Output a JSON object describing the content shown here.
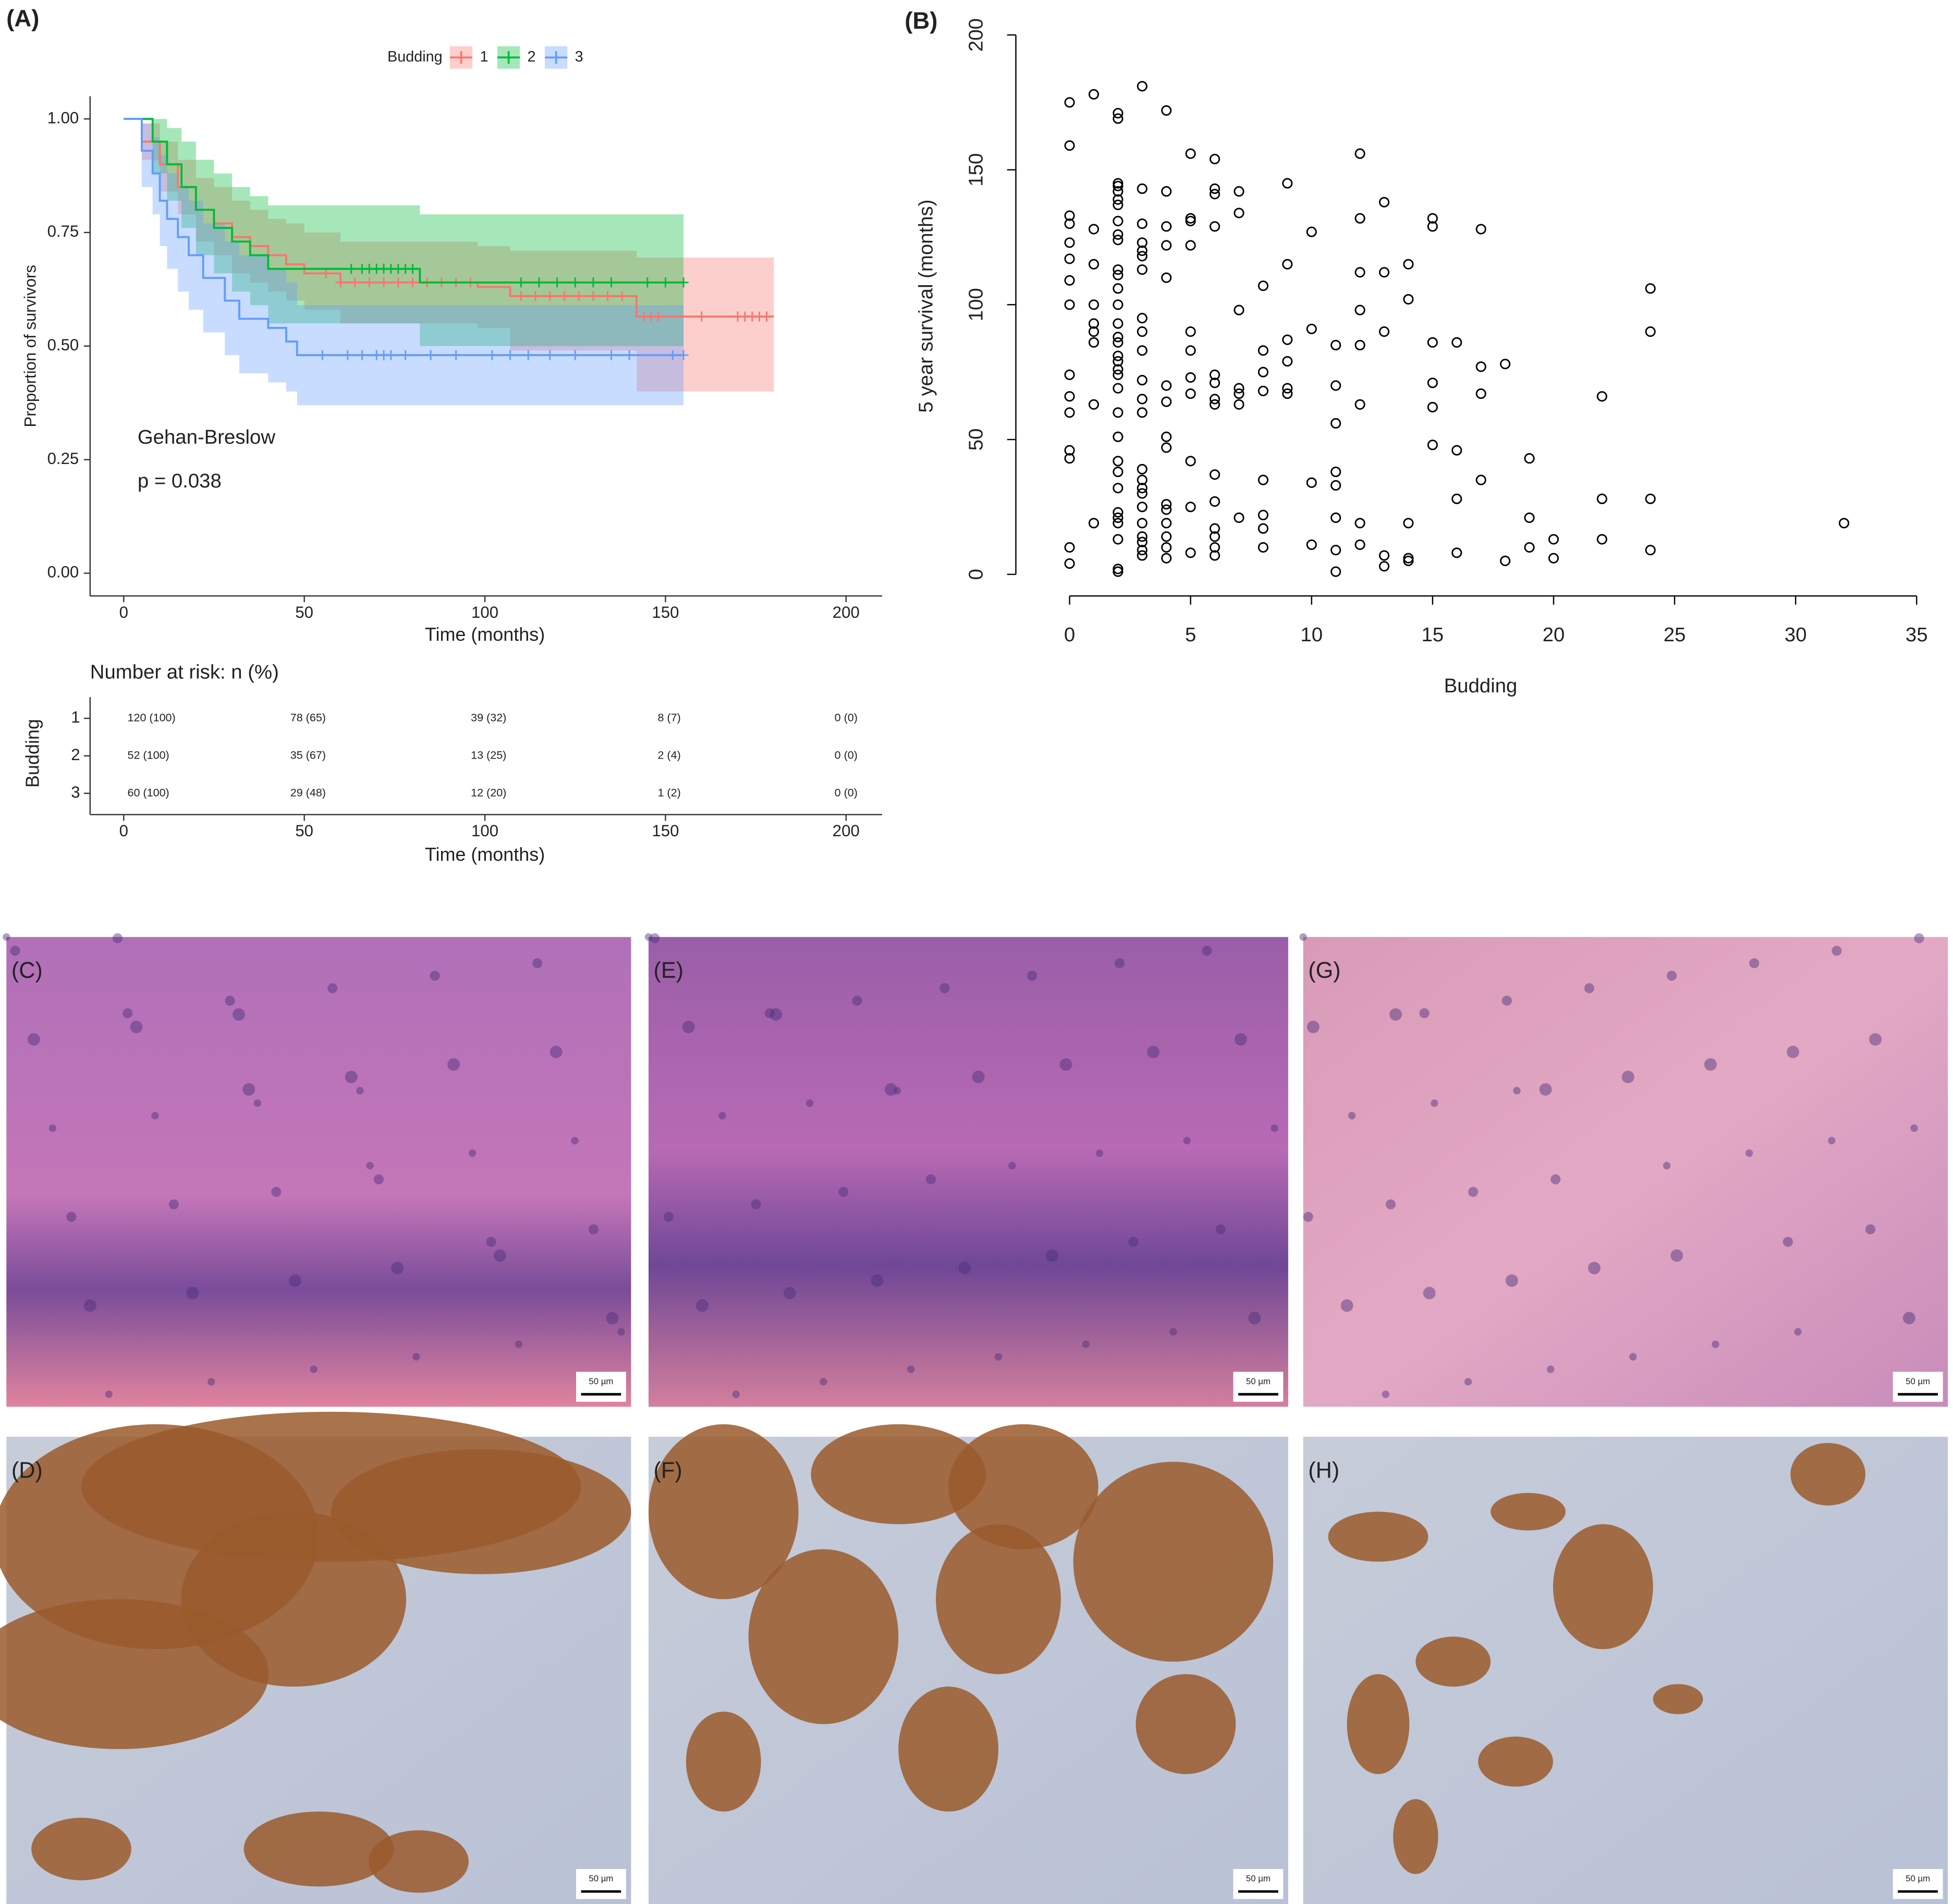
{
  "chart_data": [
    {
      "type": "km",
      "panel": "(A)",
      "xlabel": "Time (months)",
      "ylabel": "Proportion of survivors",
      "legend_title": "Budding",
      "legend": "top",
      "xlim": [
        -10,
        210
      ],
      "xticks": [
        0,
        50,
        100,
        150,
        200
      ],
      "ylim": [
        -0.05,
        1.05
      ],
      "yticks": [
        {
          "value": 0,
          "label": "0.00"
        },
        {
          "value": 0.25,
          "label": "0.25"
        },
        {
          "value": 0.5,
          "label": "0.50"
        },
        {
          "value": 0.75,
          "label": "0.75"
        },
        {
          "value": 1,
          "label": "1.00"
        }
      ],
      "annotations": [
        "Gehan-Breslow",
        "p = 0.038"
      ],
      "series": [
        {
          "name": "1",
          "color": "#F8766D",
          "x": [
            0,
            5,
            10,
            15,
            20,
            25,
            30,
            35,
            40,
            45,
            50,
            60,
            98,
            107,
            142,
            180
          ],
          "values": [
            1,
            0.95,
            0.9,
            0.85,
            0.8,
            0.77,
            0.74,
            0.72,
            0.7,
            0.68,
            0.66,
            0.64,
            0.63,
            0.61,
            0.565,
            0.565
          ],
          "upper": [
            1,
            0.99,
            0.95,
            0.91,
            0.87,
            0.85,
            0.82,
            0.8,
            0.78,
            0.77,
            0.75,
            0.73,
            0.72,
            0.71,
            0.695,
            0.695
          ],
          "lower": [
            1,
            0.91,
            0.84,
            0.79,
            0.73,
            0.7,
            0.66,
            0.64,
            0.62,
            0.6,
            0.58,
            0.55,
            0.54,
            0.49,
            0.4,
            0.4
          ],
          "censored": [
            56,
            60,
            64,
            68,
            72,
            76,
            80,
            84,
            88,
            92,
            96,
            110,
            114,
            118,
            122,
            126,
            130,
            134,
            138,
            144,
            146,
            148,
            160,
            170,
            172,
            174,
            176,
            178
          ]
        },
        {
          "name": "2",
          "color": "#00BA38",
          "x": [
            0,
            8,
            12,
            16,
            20,
            25,
            30,
            35,
            40,
            82,
            155
          ],
          "values": [
            1,
            0.95,
            0.9,
            0.85,
            0.8,
            0.76,
            0.73,
            0.7,
            0.67,
            0.64,
            0.64
          ],
          "upper": [
            1,
            1,
            0.98,
            0.95,
            0.91,
            0.88,
            0.85,
            0.83,
            0.81,
            0.79,
            0.79
          ],
          "lower": [
            1,
            0.88,
            0.82,
            0.76,
            0.7,
            0.66,
            0.62,
            0.59,
            0.55,
            0.5,
            0.5
          ],
          "censored": [
            63,
            66,
            68,
            70,
            72,
            74,
            76,
            78,
            80,
            110,
            115,
            120,
            125,
            130,
            135,
            145,
            150,
            155
          ]
        },
        {
          "name": "3",
          "color": "#619CFF",
          "x": [
            0,
            5,
            8,
            10,
            12,
            15,
            18,
            22,
            28,
            32,
            40,
            45,
            48,
            155
          ],
          "values": [
            1,
            0.93,
            0.88,
            0.82,
            0.78,
            0.74,
            0.7,
            0.65,
            0.6,
            0.56,
            0.54,
            0.51,
            0.48,
            0.48
          ],
          "upper": [
            1,
            0.99,
            0.96,
            0.92,
            0.88,
            0.85,
            0.82,
            0.77,
            0.73,
            0.7,
            0.67,
            0.64,
            0.59,
            0.59
          ],
          "lower": [
            1,
            0.85,
            0.79,
            0.72,
            0.67,
            0.62,
            0.58,
            0.53,
            0.48,
            0.44,
            0.42,
            0.4,
            0.37,
            0.37
          ],
          "censored": [
            55,
            62,
            66,
            70,
            72,
            74,
            78,
            85,
            92,
            102,
            107,
            112,
            118,
            125,
            135,
            140,
            152,
            155
          ]
        }
      ],
      "risk_table": {
        "title": "Number at risk: n (%)",
        "ylabel": "Budding",
        "rows": [
          [
            "120 (100)",
            "78 (65)",
            "39 (32)",
            "8 (7)",
            "0 (0)"
          ],
          [
            "52 (100)",
            "35 (67)",
            "13 (25)",
            "2 (4)",
            "0 (0)"
          ],
          [
            "60 (100)",
            "29 (48)",
            "12 (20)",
            "1 (2)",
            "0 (0)"
          ]
        ]
      }
    },
    {
      "type": "scatter",
      "panel": "(B)",
      "xlabel": "Budding",
      "ylabel": "5 year survival (months)",
      "xlim": [
        -0.8,
        35
      ],
      "xticks": [
        0,
        5,
        10,
        15,
        20,
        25,
        30,
        35
      ],
      "ylim": [
        -8,
        200
      ],
      "yticks": [
        0,
        50,
        100,
        150,
        200
      ],
      "color": "#000000",
      "x": [
        0,
        0,
        0,
        0,
        0,
        0,
        0,
        0,
        0,
        0,
        0,
        0,
        0,
        0,
        0,
        1,
        1,
        1,
        1,
        1,
        1,
        1,
        1,
        1,
        2,
        2,
        2,
        2,
        2,
        2,
        2,
        2,
        2,
        2,
        2,
        2,
        2,
        2,
        2,
        2,
        2,
        2,
        2,
        2,
        2,
        2,
        2,
        2,
        2,
        2,
        2,
        2,
        2,
        2,
        2,
        2,
        2,
        3,
        3,
        3,
        3,
        3,
        3,
        3,
        3,
        3,
        3,
        3,
        3,
        3,
        3,
        3,
        3,
        3,
        3,
        3,
        3,
        3,
        3,
        3,
        4,
        4,
        4,
        4,
        4,
        4,
        4,
        4,
        4,
        4,
        4,
        4,
        4,
        4,
        4,
        5,
        5,
        5,
        5,
        5,
        5,
        5,
        5,
        5,
        5,
        5,
        6,
        6,
        6,
        6,
        6,
        6,
        6,
        6,
        6,
        6,
        6,
        6,
        6,
        6,
        7,
        7,
        7,
        7,
        7,
        7,
        7,
        8,
        8,
        8,
        8,
        8,
        8,
        8,
        8,
        9,
        9,
        9,
        9,
        9,
        9,
        10,
        10,
        10,
        10,
        11,
        11,
        11,
        11,
        11,
        11,
        11,
        11,
        12,
        12,
        12,
        12,
        12,
        12,
        12,
        12,
        13,
        13,
        13,
        13,
        13,
        14,
        14,
        14,
        14,
        14,
        15,
        15,
        15,
        15,
        15,
        15,
        16,
        16,
        16,
        16,
        17,
        17,
        17,
        17,
        18,
        18,
        19,
        19,
        19,
        20,
        20,
        22,
        22,
        22,
        24,
        24,
        24,
        24,
        32
      ],
      "values": [
        175,
        159,
        133,
        130,
        123,
        117,
        109,
        100,
        74,
        66,
        60,
        46,
        43,
        10,
        4,
        178,
        128,
        115,
        100,
        93,
        90,
        86,
        63,
        19,
        171,
        169,
        145,
        144,
        142,
        139,
        137,
        131,
        126,
        124,
        113,
        111,
        106,
        100,
        93,
        88,
        86,
        81,
        79,
        76,
        74,
        69,
        60,
        51,
        42,
        38,
        32,
        23,
        21,
        19,
        13,
        2,
        1,
        181,
        143,
        130,
        123,
        120,
        118,
        113,
        95,
        90,
        83,
        72,
        65,
        60,
        39,
        35,
        32,
        30,
        25,
        19,
        14,
        12,
        9,
        7,
        172,
        142,
        129,
        122,
        110,
        70,
        64,
        51,
        47,
        26,
        24,
        19,
        14,
        10,
        6,
        156,
        132,
        131,
        122,
        90,
        83,
        73,
        67,
        42,
        25,
        8,
        154,
        143,
        141,
        129,
        74,
        71,
        65,
        63,
        37,
        27,
        17,
        14,
        10,
        7,
        142,
        134,
        98,
        69,
        67,
        63,
        21,
        107,
        83,
        75,
        68,
        35,
        22,
        17,
        10,
        145,
        115,
        87,
        79,
        69,
        67,
        127,
        91,
        34,
        11,
        85,
        70,
        56,
        38,
        33,
        21,
        9,
        1,
        156,
        132,
        112,
        98,
        85,
        63,
        19,
        11,
        138,
        112,
        90,
        7,
        3,
        115,
        102,
        19,
        6,
        5,
        132,
        129,
        86,
        71,
        62,
        48,
        86,
        46,
        28,
        8,
        128,
        77,
        67,
        35,
        78,
        5,
        43,
        21,
        10,
        13,
        6,
        66,
        28,
        13,
        106,
        90,
        28,
        9,
        19
      ]
    }
  ],
  "images": [
    {
      "label": "(C)",
      "scale_bar": "50 µm"
    },
    {
      "label": "(E)",
      "scale_bar": "50 µm"
    },
    {
      "label": "(G)",
      "scale_bar": "50 µm"
    },
    {
      "label": "(D)",
      "scale_bar": "50 µm"
    },
    {
      "label": "(F)",
      "scale_bar": "50 µm"
    },
    {
      "label": "(H)",
      "scale_bar": "50 µm"
    }
  ]
}
